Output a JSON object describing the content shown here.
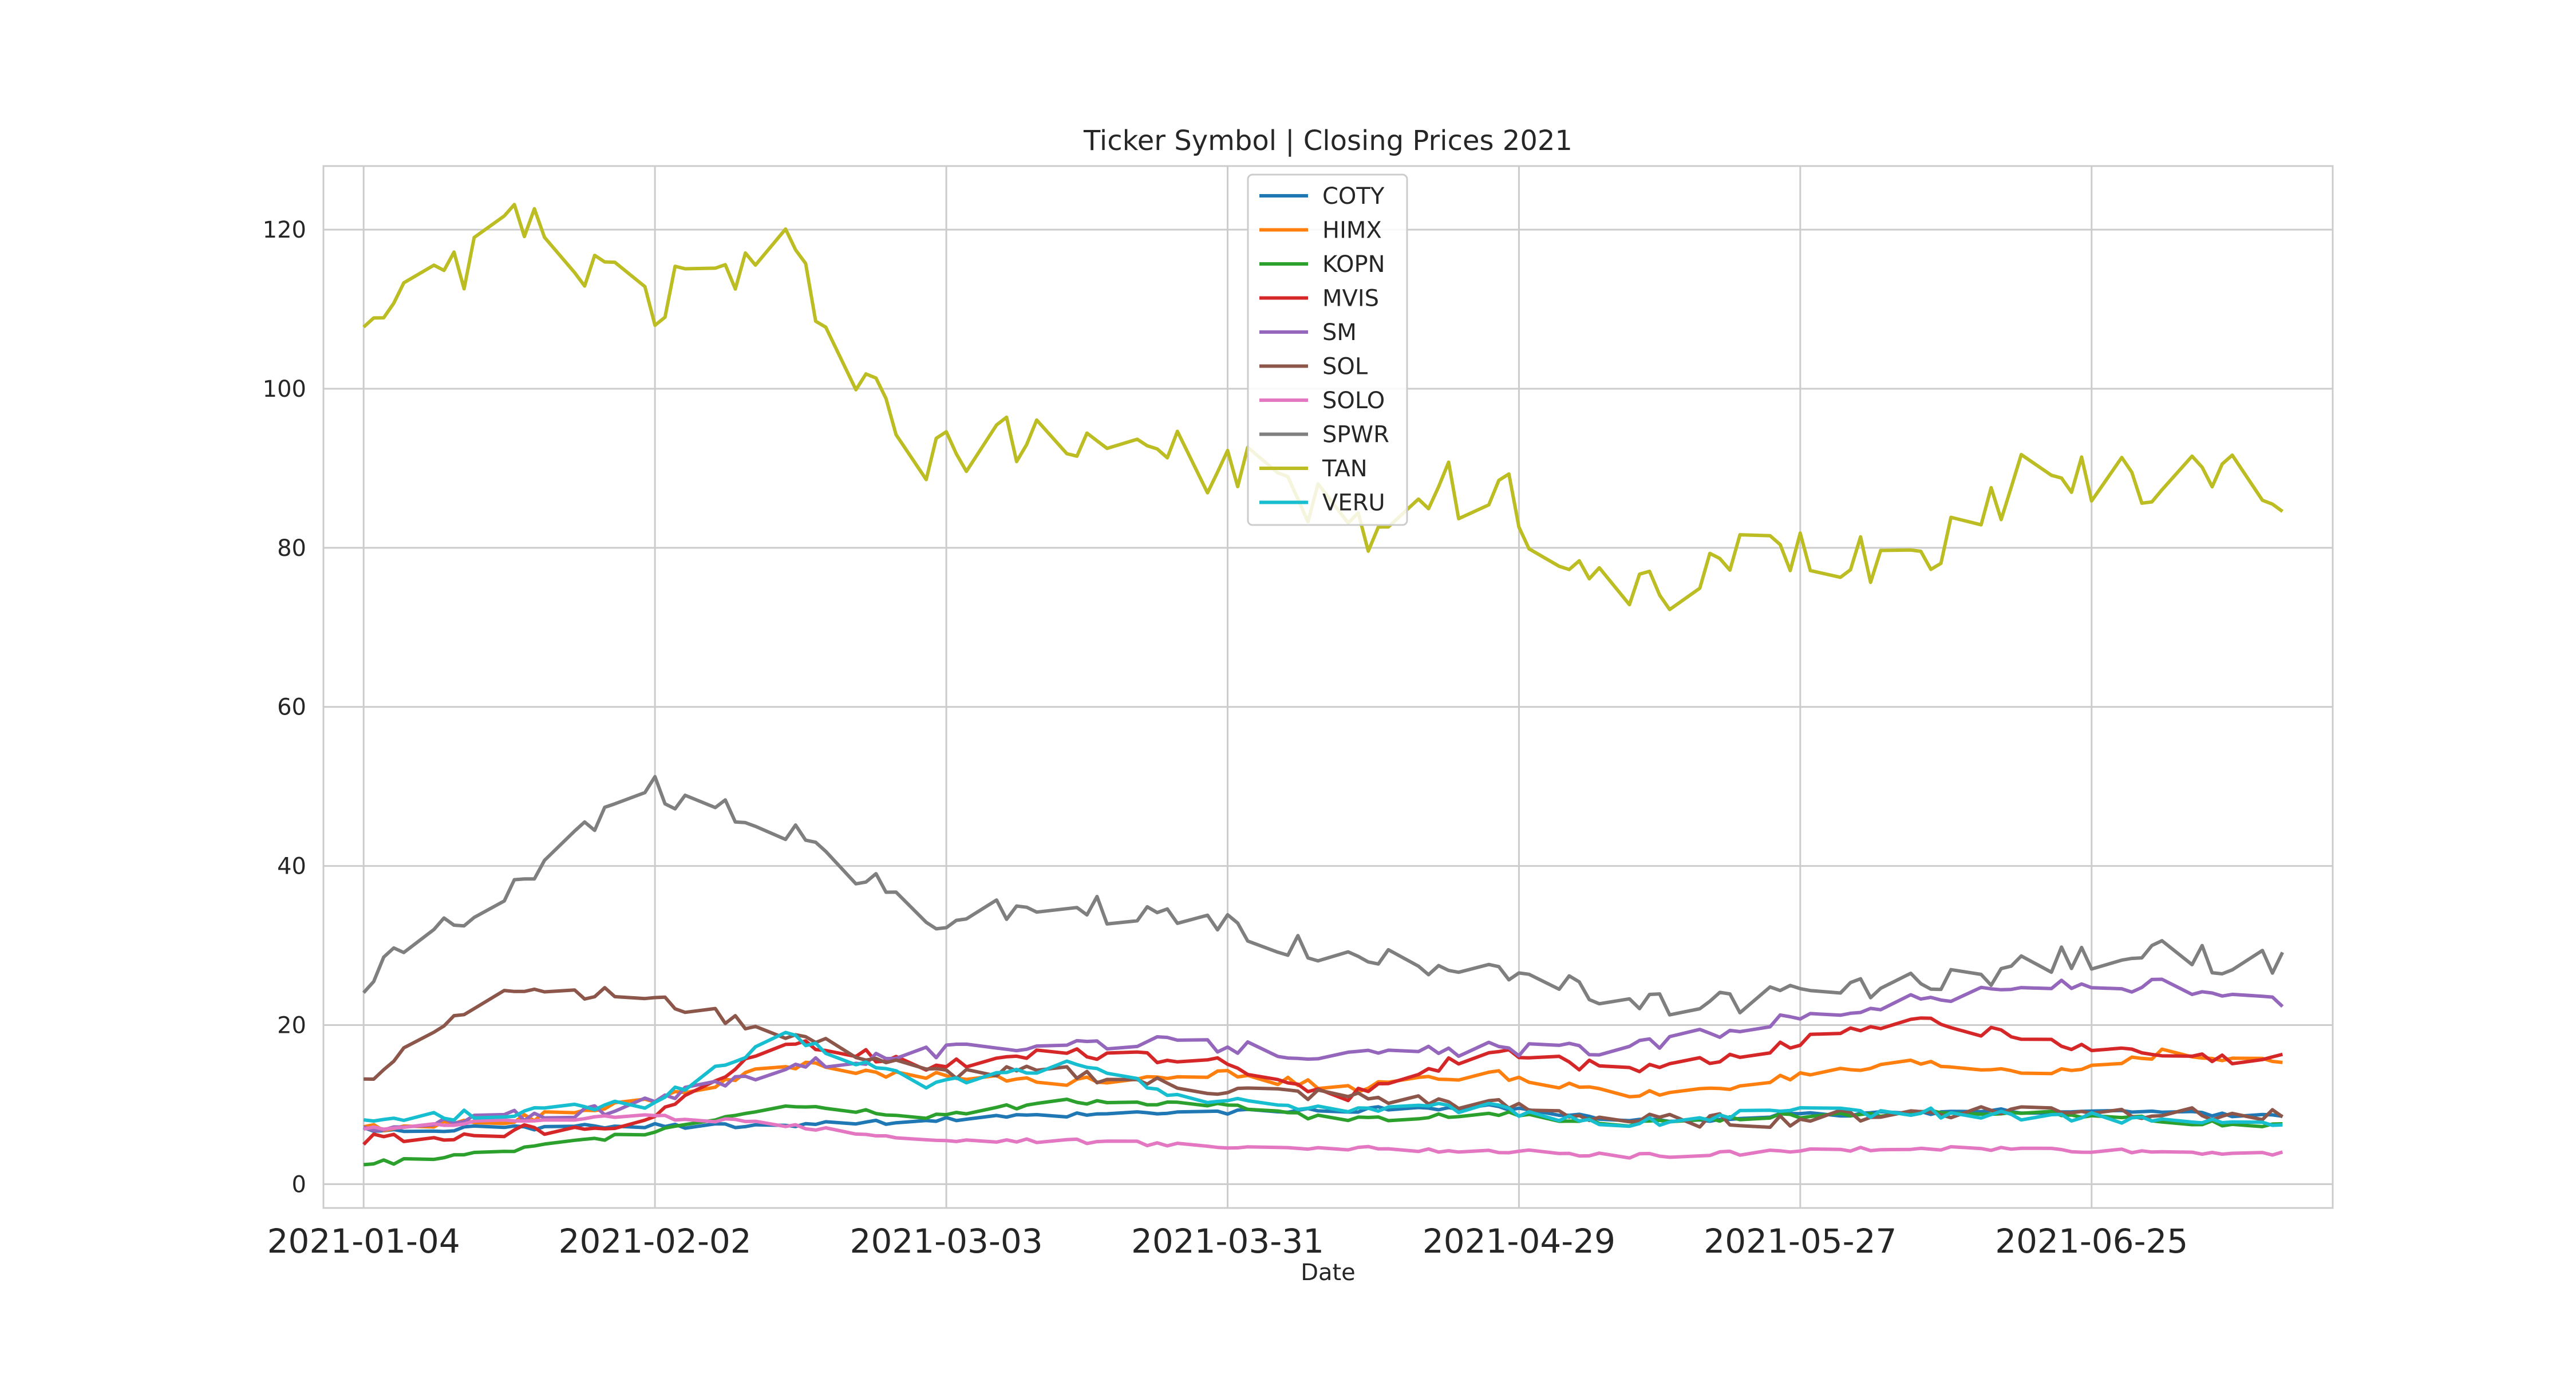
{
  "chart_data": {
    "type": "line",
    "title": "Ticker Symbol | Closing Prices 2021",
    "xlabel": "Date",
    "ylabel": "",
    "ylim": [
      -3,
      128
    ],
    "xlim": [
      "2020-12-31",
      "2021-07-19"
    ],
    "x_ticks": [
      "2021-01-04",
      "2021-02-02",
      "2021-03-03",
      "2021-03-31",
      "2021-04-29",
      "2021-05-27",
      "2021-06-25"
    ],
    "y_ticks": [
      0,
      20,
      40,
      60,
      80,
      100,
      120
    ],
    "grid": true,
    "legend": "upper-center",
    "dates": [
      "2021-01-04",
      "2021-01-18",
      "2021-02-01",
      "2021-02-15",
      "2021-03-01",
      "2021-03-15",
      "2021-03-29",
      "2021-04-12",
      "2021-04-26",
      "2021-05-10",
      "2021-05-24",
      "2021-06-07",
      "2021-06-21",
      "2021-07-02",
      "2021-07-09",
      "2021-07-14"
    ],
    "series": [
      {
        "name": "COTY",
        "color": "#1f77b4",
        "values": [
          6.8,
          7.0,
          7.3,
          7.5,
          8.0,
          8.6,
          9.0,
          9.3,
          9.8,
          7.8,
          8.5,
          9.0,
          9.2,
          9.0,
          8.8,
          8.7
        ]
      },
      {
        "name": "HIMX",
        "color": "#ff7f0e",
        "values": [
          7.0,
          8.0,
          10.5,
          15.0,
          13.5,
          13.0,
          14.0,
          12.0,
          14.0,
          11.0,
          13.0,
          15.0,
          14.0,
          16.5,
          15.5,
          15.3
        ]
      },
      {
        "name": "KOPN",
        "color": "#2ca02c",
        "values": [
          2.5,
          4.0,
          6.5,
          10.0,
          8.5,
          10.5,
          10.0,
          8.0,
          9.0,
          7.5,
          8.5,
          9.0,
          9.0,
          8.0,
          7.5,
          7.4
        ]
      },
      {
        "name": "MVIS",
        "color": "#d62728",
        "values": [
          5.5,
          6.5,
          8.0,
          18.0,
          15.0,
          16.5,
          15.5,
          11.0,
          17.0,
          14.0,
          17.0,
          21.0,
          17.5,
          16.0,
          15.5,
          15.6
        ]
      },
      {
        "name": "SM",
        "color": "#9467bd",
        "values": [
          6.5,
          8.5,
          10.0,
          15.0,
          16.5,
          18.0,
          17.5,
          16.0,
          17.0,
          17.0,
          20.5,
          23.0,
          25.0,
          25.0,
          23.0,
          22.8
        ]
      },
      {
        "name": "SOL",
        "color": "#8c564b",
        "values": [
          13.0,
          25.0,
          23.5,
          19.0,
          14.0,
          14.0,
          12.0,
          11.0,
          10.0,
          8.0,
          8.0,
          9.0,
          9.5,
          9.0,
          8.5,
          8.5
        ]
      },
      {
        "name": "SOLO",
        "color": "#e377c2",
        "values": [
          7.0,
          8.0,
          8.5,
          7.5,
          5.5,
          5.5,
          4.8,
          4.5,
          4.2,
          3.5,
          4.0,
          4.5,
          4.3,
          4.0,
          3.9,
          3.9
        ]
      },
      {
        "name": "SPWR",
        "color": "#7f7f7f",
        "values": [
          25.5,
          37.0,
          50.0,
          45.0,
          33.0,
          35.0,
          33.0,
          28.0,
          28.0,
          22.0,
          23.5,
          25.0,
          28.0,
          29.0,
          28.0,
          27.5
        ]
      },
      {
        "name": "TAN",
        "color": "#bcbd22",
        "values": [
          105.0,
          121.0,
          111.0,
          116.0,
          90.0,
          95.0,
          91.0,
          83.0,
          88.0,
          72.0,
          79.0,
          79.0,
          90.0,
          89.0,
          88.0,
          87.0
        ]
      },
      {
        "name": "VERU",
        "color": "#17becf",
        "values": [
          8.0,
          9.0,
          10.0,
          18.5,
          12.5,
          15.0,
          10.5,
          9.5,
          9.5,
          7.5,
          9.0,
          9.0,
          8.5,
          8.0,
          7.6,
          7.5
        ]
      }
    ]
  }
}
